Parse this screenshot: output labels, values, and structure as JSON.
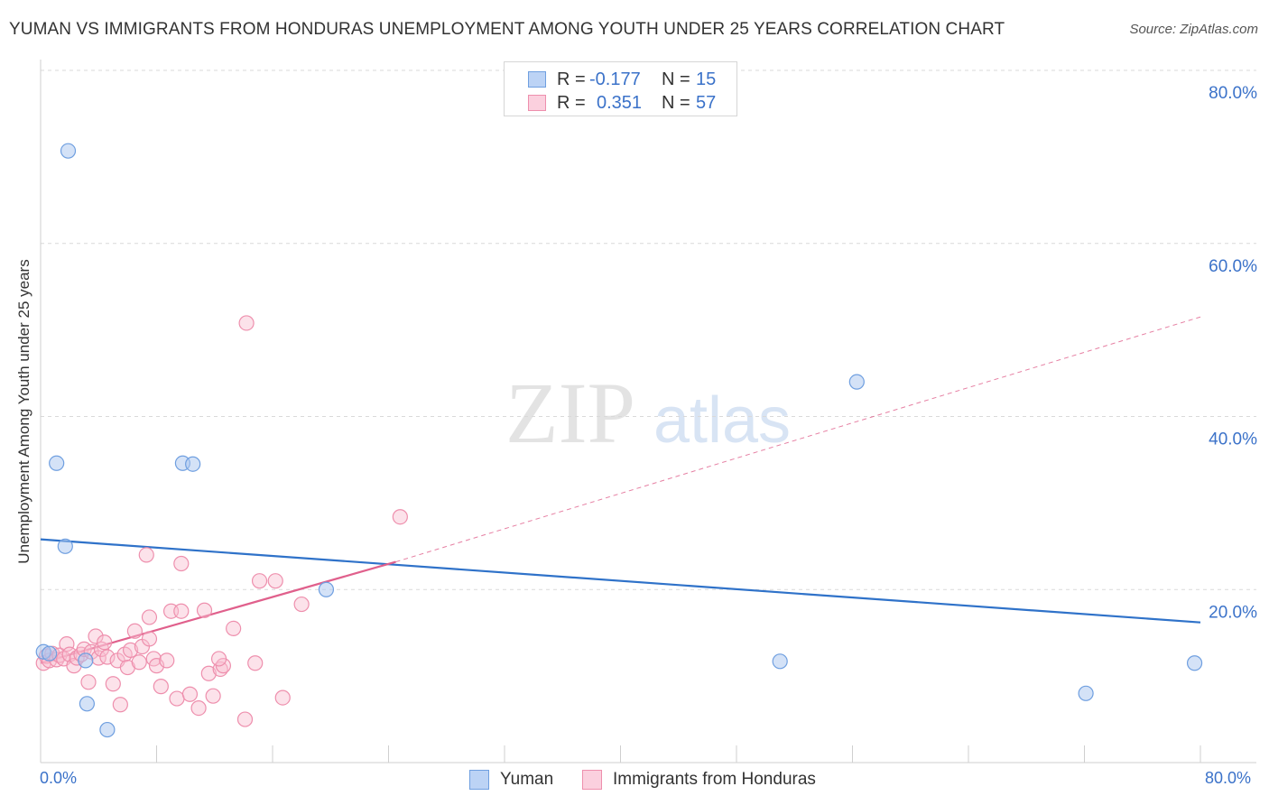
{
  "title": "YUMAN VS IMMIGRANTS FROM HONDURAS UNEMPLOYMENT AMONG YOUTH UNDER 25 YEARS CORRELATION CHART",
  "source": "Source: ZipAtlas.com",
  "watermark": {
    "zip": "ZIP",
    "atlas": "atlas"
  },
  "legend": {
    "yuman": {
      "r_label": "R =",
      "r_value": "-0.177",
      "n_label": "N =",
      "n_value": "15"
    },
    "honduras": {
      "r_label": "R =",
      "r_value": "0.351",
      "n_label": "N =",
      "n_value": "57"
    }
  },
  "bottom_legend": {
    "yuman": "Yuman",
    "honduras": "Immigrants from Honduras"
  },
  "colors": {
    "yuman_fill": "#a9c6f0",
    "yuman_stroke": "#6f9fe0",
    "yuman_line": "#2f72c9",
    "honduras_fill": "#f8bfd1",
    "honduras_stroke": "#ee8fad",
    "honduras_line": "#e0608c",
    "accent_text": "#3b72c9",
    "grid": "#d9d9d9"
  },
  "chart_data": {
    "type": "scatter",
    "title": "YUMAN VS IMMIGRANTS FROM HONDURAS UNEMPLOYMENT AMONG YOUTH UNDER 25 YEARS CORRELATION CHART",
    "xlabel": "",
    "ylabel": "Unemployment Among Youth under 25 years",
    "xlim": [
      0,
      80
    ],
    "ylim": [
      0,
      80
    ],
    "x_tick_labels": [
      "0.0%",
      "80.0%"
    ],
    "y_ticks": [
      20,
      40,
      60,
      80
    ],
    "y_tick_labels": [
      "20.0%",
      "40.0%",
      "60.0%",
      "80.0%"
    ],
    "grid": true,
    "series": [
      {
        "name": "Yuman",
        "points": [
          [
            0.2,
            12.8
          ],
          [
            1.9,
            70.7
          ],
          [
            1.1,
            34.6
          ],
          [
            1.7,
            25.0
          ],
          [
            3.1,
            11.8
          ],
          [
            3.2,
            6.8
          ],
          [
            4.6,
            3.8
          ],
          [
            9.8,
            34.6
          ],
          [
            10.5,
            34.5
          ],
          [
            19.7,
            20.0
          ],
          [
            56.3,
            44.0
          ],
          [
            51.0,
            11.7
          ],
          [
            72.1,
            8.0
          ],
          [
            79.6,
            11.5
          ],
          [
            0.6,
            12.6
          ]
        ],
        "trend": {
          "x": [
            0,
            80
          ],
          "y": [
            25.8,
            16.2
          ]
        }
      },
      {
        "name": "Immigrants from Honduras",
        "points": [
          [
            0.2,
            11.5
          ],
          [
            0.4,
            12.3
          ],
          [
            0.6,
            11.8
          ],
          [
            0.8,
            12.6
          ],
          [
            1.1,
            11.9
          ],
          [
            1.3,
            12.4
          ],
          [
            1.6,
            12.0
          ],
          [
            1.8,
            13.7
          ],
          [
            2.0,
            12.5
          ],
          [
            2.3,
            11.2
          ],
          [
            2.5,
            12.1
          ],
          [
            2.8,
            12.5
          ],
          [
            3.0,
            13.1
          ],
          [
            3.3,
            9.3
          ],
          [
            3.5,
            12.8
          ],
          [
            3.8,
            14.6
          ],
          [
            4.0,
            12.1
          ],
          [
            4.2,
            13.1
          ],
          [
            4.4,
            13.9
          ],
          [
            4.6,
            12.2
          ],
          [
            5.0,
            9.1
          ],
          [
            5.3,
            11.8
          ],
          [
            5.5,
            6.7
          ],
          [
            5.8,
            12.5
          ],
          [
            6.0,
            11.0
          ],
          [
            6.2,
            13.0
          ],
          [
            6.5,
            15.2
          ],
          [
            6.8,
            11.6
          ],
          [
            7.0,
            13.4
          ],
          [
            7.3,
            24.0
          ],
          [
            7.5,
            16.8
          ],
          [
            7.8,
            12.0
          ],
          [
            7.5,
            14.3
          ],
          [
            8.0,
            11.2
          ],
          [
            8.3,
            8.8
          ],
          [
            8.7,
            11.8
          ],
          [
            9.0,
            17.5
          ],
          [
            9.4,
            7.4
          ],
          [
            9.7,
            23.0
          ],
          [
            10.3,
            7.9
          ],
          [
            10.9,
            6.3
          ],
          [
            11.3,
            17.6
          ],
          [
            11.6,
            10.3
          ],
          [
            11.9,
            7.7
          ],
          [
            12.4,
            10.8
          ],
          [
            12.6,
            11.2
          ],
          [
            13.3,
            15.5
          ],
          [
            14.1,
            5.0
          ],
          [
            14.2,
            50.8
          ],
          [
            14.8,
            11.5
          ],
          [
            15.1,
            21.0
          ],
          [
            16.2,
            21.0
          ],
          [
            16.7,
            7.5
          ],
          [
            18.0,
            18.3
          ],
          [
            24.8,
            28.4
          ],
          [
            9.7,
            17.5
          ],
          [
            12.3,
            12.0
          ]
        ],
        "trend_solid": {
          "x": [
            0,
            24.5
          ],
          "y": [
            11.5,
            23.2
          ]
        },
        "trend_dashed": {
          "x": [
            24.5,
            80
          ],
          "y": [
            23.2,
            51.5
          ]
        }
      }
    ]
  }
}
